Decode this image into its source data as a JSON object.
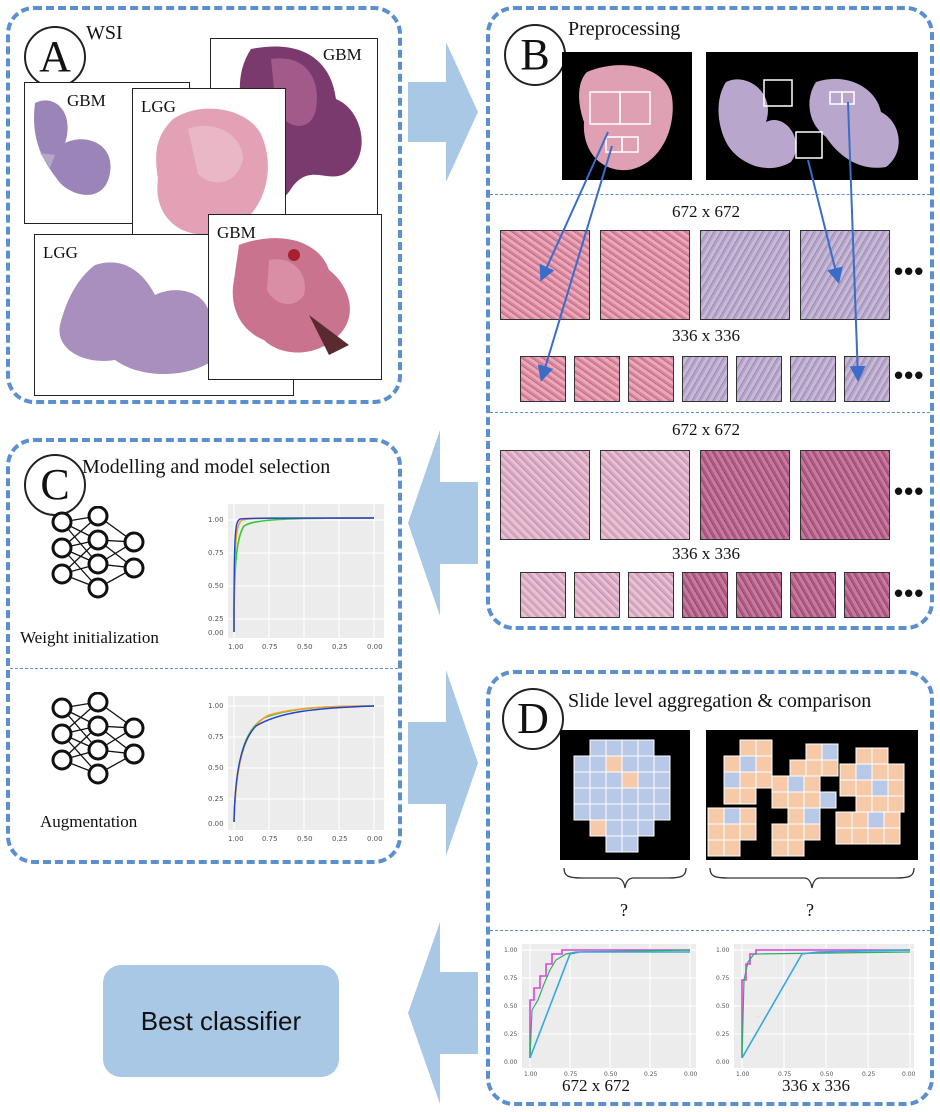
{
  "panels": {
    "a": {
      "letter": "A",
      "title": "WSI",
      "labels": [
        "GBM",
        "GBM",
        "LGG",
        "LGG",
        "GBM"
      ]
    },
    "b": {
      "letter": "B",
      "title": "Preprocessing",
      "sizes": [
        "672 x 672",
        "336 x 336",
        "672 x 672",
        "336 x 336"
      ],
      "ellipsis": "•••"
    },
    "c": {
      "letter": "C",
      "title": "Modelling and model selection",
      "captions": [
        "Weight initialization",
        "Augmentation"
      ],
      "ticks_x": [
        "1.00",
        "0.75",
        "0.50",
        "0.25",
        "0.00"
      ],
      "ticks_y": [
        "1.00",
        "0.75",
        "0.50",
        "0.25",
        "0.00"
      ]
    },
    "d": {
      "letter": "D",
      "title": "Slide level aggregation & comparison",
      "questions": [
        "?",
        "?"
      ],
      "captions": [
        "672 x 672",
        "336 x 336"
      ]
    }
  },
  "best": {
    "label": "Best classifier"
  },
  "colors": {
    "border": "#5b8fd0",
    "arrow": "#a8c8e6",
    "tile_blue": "#b8c9e8",
    "tile_orange": "#f6c9a8",
    "curve_green": "#33cc33",
    "curve_orange": "#f0a030",
    "curve_blue": "#2244cc",
    "curve_magenta": "#dd44dd",
    "curve_cyan": "#33aadd"
  }
}
